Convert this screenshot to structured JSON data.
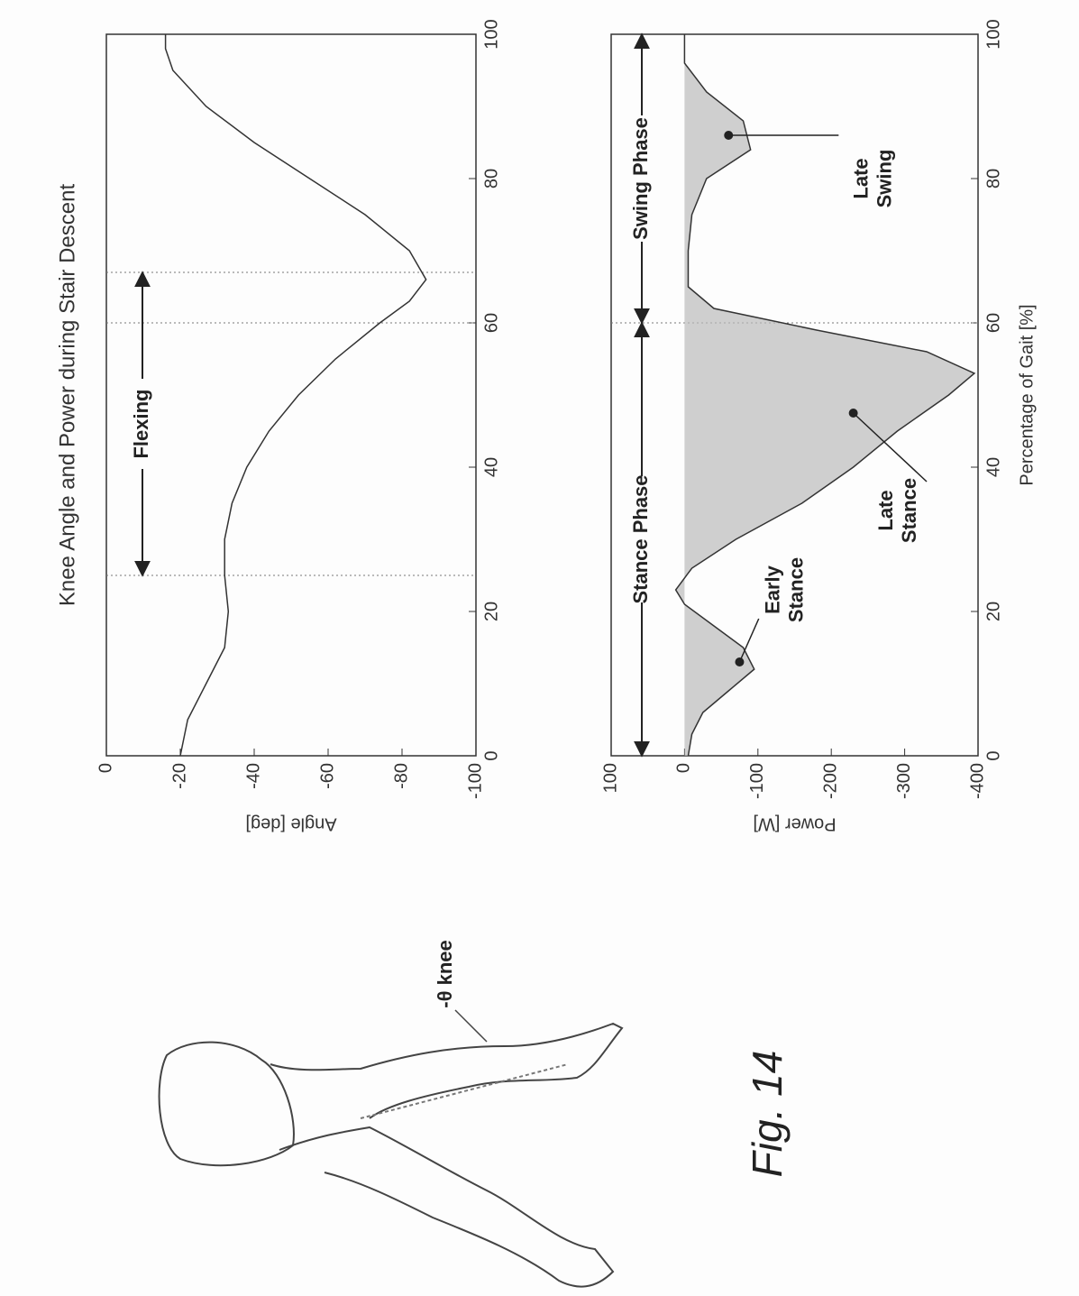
{
  "figure_label": "Fig. 14",
  "knee_label": "-θ knee",
  "chart_data": [
    {
      "type": "line",
      "title": "Knee Angle and Power during Stair Descent",
      "ylabel": "Angle [deg]",
      "x": [
        0,
        5,
        10,
        15,
        20,
        25,
        30,
        35,
        40,
        45,
        50,
        55,
        60,
        63,
        66,
        70,
        75,
        80,
        85,
        90,
        95,
        98,
        100
      ],
      "values": [
        -20,
        -22,
        -27,
        -32,
        -33,
        -32,
        -32,
        -34,
        -38,
        -44,
        -52,
        -62,
        -74,
        -82,
        -86.5,
        -82,
        -70,
        -55,
        -40,
        -27,
        -18,
        -16,
        -16
      ],
      "xlim": [
        0,
        100
      ],
      "xticks": [
        0,
        20,
        40,
        60,
        80,
        100
      ],
      "ylim": [
        -100,
        0
      ],
      "yticks": [
        0,
        -20,
        -40,
        -60,
        -80,
        -100
      ],
      "vlines": [
        25,
        60,
        67
      ],
      "annotations": [
        [
          "Flexing"
        ]
      ]
    },
    {
      "type": "area",
      "ylabel": "Power [W]",
      "xlabel": "Percentage of Gait [%]",
      "x": [
        0,
        3,
        6,
        9,
        12,
        15,
        18,
        21,
        23,
        26,
        30,
        35,
        40,
        45,
        50,
        53,
        56,
        59,
        62,
        65,
        70,
        75,
        80,
        84,
        88,
        92,
        96,
        100
      ],
      "values": [
        -5,
        -10,
        -25,
        -60,
        -95,
        -80,
        -40,
        0,
        12,
        -10,
        -70,
        -160,
        -230,
        -290,
        -360,
        -395,
        -330,
        -180,
        -40,
        -5,
        -5,
        -10,
        -30,
        -90,
        -80,
        -30,
        0,
        0
      ],
      "xlim": [
        0,
        100
      ],
      "xticks": [
        0,
        20,
        40,
        60,
        80,
        100
      ],
      "ylim": [
        -400,
        100
      ],
      "yticks": [
        100,
        0,
        -100,
        -200,
        -300,
        -400
      ],
      "vlines": [
        60
      ],
      "annotations": [
        [
          "Stance Phase"
        ],
        [
          "Swing Phase"
        ],
        [
          "Early",
          "Stance"
        ],
        [
          "Late",
          "Stance"
        ],
        [
          "Late",
          "Swing"
        ]
      ]
    }
  ]
}
